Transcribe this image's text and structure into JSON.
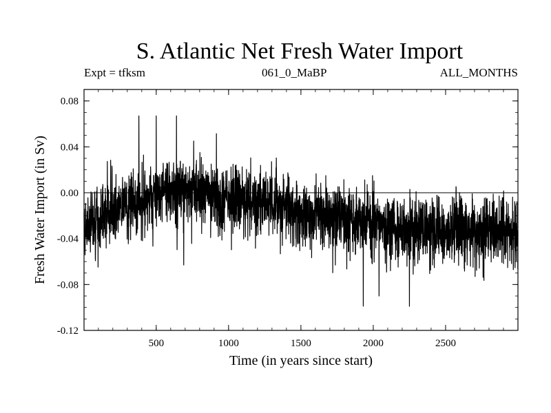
{
  "chart_data": {
    "type": "line",
    "title": "S. Atlantic Net Fresh Water Import",
    "subtitle_left": "Expt = tfksm",
    "subtitle_center": "061_0_MaBP",
    "subtitle_right": "ALL_MONTHS",
    "xlabel": "Time (in years since start)",
    "ylabel": "Fresh Water Import (in Sv)",
    "xlim": [
      1,
      3000
    ],
    "ylim": [
      -0.12,
      0.09
    ],
    "xticks": [
      500,
      1000,
      1500,
      2000,
      2500
    ],
    "xtick_labels": [
      "500",
      "1000",
      "1500",
      "2000",
      "2500"
    ],
    "yticks": [
      0.08,
      0.04,
      0.0,
      -0.04,
      -0.08,
      -0.12
    ],
    "ytick_labels": [
      "0.08",
      "0.04",
      "0.00",
      "-0.04",
      "-0.08",
      "-0.12"
    ],
    "zero_line": true,
    "series": [
      {
        "name": "Net Fresh Water Import",
        "color": "#000000",
        "trend_x": [
          1,
          250,
          500,
          650,
          800,
          1000,
          1250,
          1500,
          1750,
          2000,
          2250,
          2500,
          2750,
          3000
        ],
        "trend_y": [
          -0.03,
          -0.012,
          -0.002,
          0.003,
          0.001,
          -0.006,
          -0.011,
          -0.016,
          -0.022,
          -0.028,
          -0.033,
          -0.033,
          -0.034,
          -0.034
        ],
        "noise_std": 0.014,
        "points": 3000,
        "notable_extremes": [
          {
            "x": 380,
            "y": 0.067
          },
          {
            "x": 500,
            "y": 0.067
          },
          {
            "x": 640,
            "y": 0.067
          },
          {
            "x": 690,
            "y": -0.063
          },
          {
            "x": 2040,
            "y": -0.09
          },
          {
            "x": 2250,
            "y": -0.099
          }
        ]
      }
    ]
  }
}
